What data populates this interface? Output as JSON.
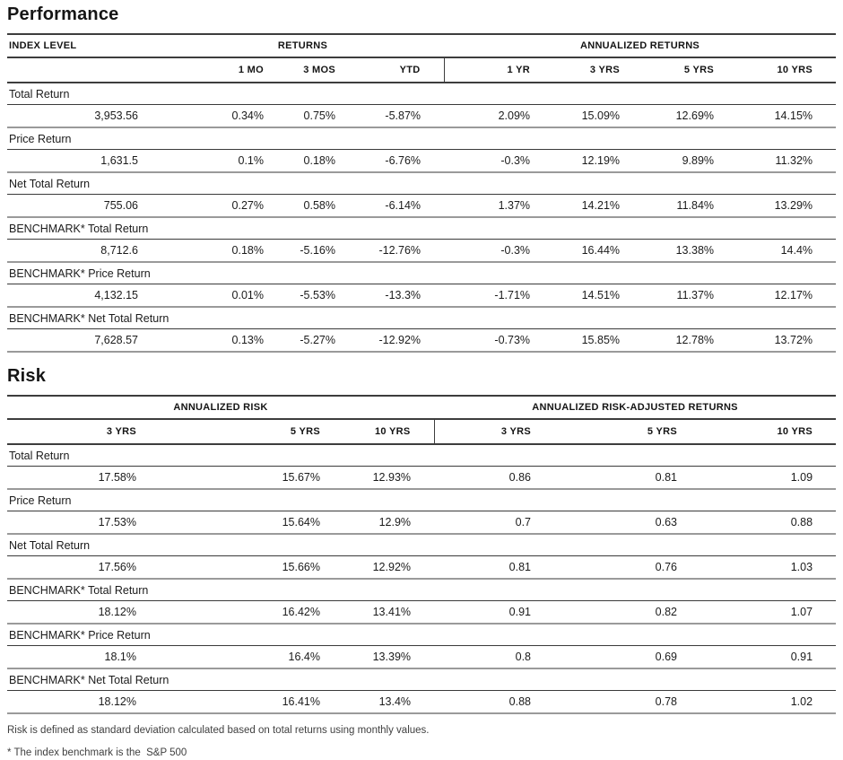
{
  "performance": {
    "title": "Performance",
    "header": {
      "col1": "INDEX LEVEL",
      "group1": "RETURNS",
      "group2": "ANNUALIZED RETURNS",
      "subcols": [
        "1 MO",
        "3 MOS",
        "YTD",
        "1 YR",
        "3 YRS",
        "5 YRS",
        "10 YRS"
      ]
    },
    "rows": [
      {
        "label": "Total Return",
        "values": [
          "3,953.56",
          "0.34%",
          "0.75%",
          "-5.87%",
          "2.09%",
          "15.09%",
          "12.69%",
          "14.15%"
        ]
      },
      {
        "label": "Price Return",
        "values": [
          "1,631.5",
          "0.1%",
          "0.18%",
          "-6.76%",
          "-0.3%",
          "12.19%",
          "9.89%",
          "11.32%"
        ]
      },
      {
        "label": "Net Total Return",
        "values": [
          "755.06",
          "0.27%",
          "0.58%",
          "-6.14%",
          "1.37%",
          "14.21%",
          "11.84%",
          "13.29%"
        ]
      },
      {
        "label": "BENCHMARK* Total Return",
        "values": [
          "8,712.6",
          "0.18%",
          "-5.16%",
          "-12.76%",
          "-0.3%",
          "16.44%",
          "13.38%",
          "14.4%"
        ]
      },
      {
        "label": "BENCHMARK* Price Return",
        "values": [
          "4,132.15",
          "0.01%",
          "-5.53%",
          "-13.3%",
          "-1.71%",
          "14.51%",
          "11.37%",
          "12.17%"
        ]
      },
      {
        "label": "BENCHMARK* Net Total Return",
        "values": [
          "7,628.57",
          "0.13%",
          "-5.27%",
          "-12.92%",
          "-0.73%",
          "15.85%",
          "12.78%",
          "13.72%"
        ]
      }
    ]
  },
  "risk": {
    "title": "Risk",
    "header": {
      "group1": "ANNUALIZED RISK",
      "group2": "ANNUALIZED RISK-ADJUSTED RETURNS",
      "subcols": [
        "3 YRS",
        "5 YRS",
        "10 YRS",
        "3 YRS",
        "5 YRS",
        "10 YRS"
      ]
    },
    "rows": [
      {
        "label": "Total Return",
        "values": [
          "17.58%",
          "15.67%",
          "12.93%",
          "0.86",
          "0.81",
          "1.09"
        ]
      },
      {
        "label": "Price Return",
        "values": [
          "17.53%",
          "15.64%",
          "12.9%",
          "0.7",
          "0.63",
          "0.88"
        ]
      },
      {
        "label": "Net Total Return",
        "values": [
          "17.56%",
          "15.66%",
          "12.92%",
          "0.81",
          "0.76",
          "1.03"
        ]
      },
      {
        "label": "BENCHMARK* Total Return",
        "values": [
          "18.12%",
          "16.42%",
          "13.41%",
          "0.91",
          "0.82",
          "1.07"
        ]
      },
      {
        "label": "BENCHMARK* Price Return",
        "values": [
          "18.1%",
          "16.4%",
          "13.39%",
          "0.8",
          "0.69",
          "0.91"
        ]
      },
      {
        "label": "BENCHMARK* Net Total Return",
        "values": [
          "18.12%",
          "16.41%",
          "13.4%",
          "0.88",
          "0.78",
          "1.02"
        ]
      }
    ]
  },
  "footnotes": {
    "risk_definition": "Risk is defined as standard deviation calculated based on total returns using monthly values.",
    "benchmark": "* The index benchmark is the  S&P 500"
  }
}
